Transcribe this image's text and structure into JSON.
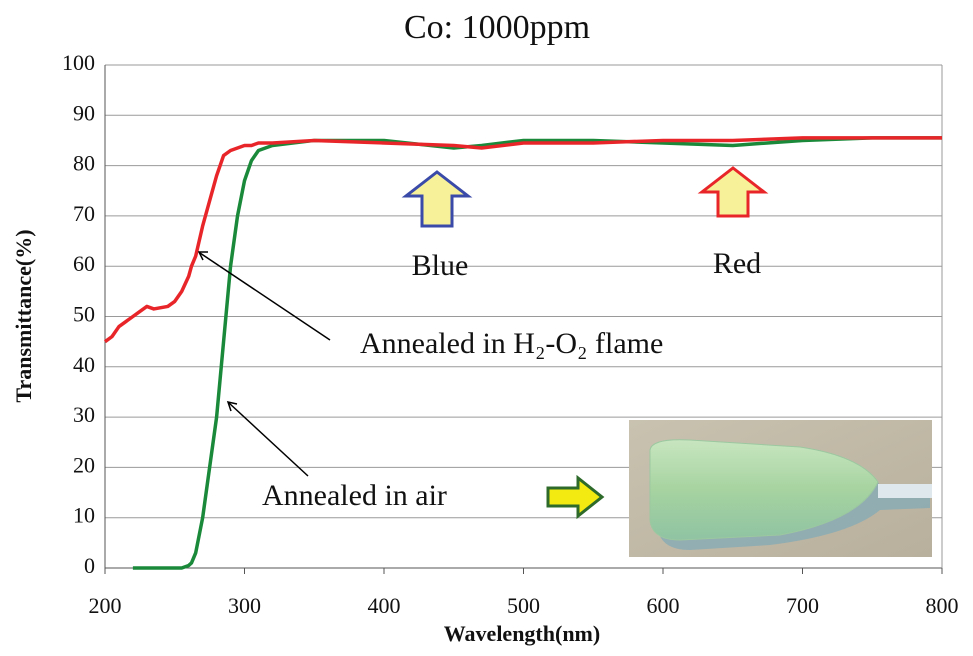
{
  "chart_data": {
    "type": "line",
    "title": "Co: 1000ppm",
    "x_label": "Wavelength(nm)",
    "y_label": "Transmittance(%)",
    "x": [
      200,
      205,
      210,
      220,
      230,
      235,
      245,
      250,
      255,
      260,
      262,
      265,
      270,
      275,
      280,
      285,
      290,
      295,
      300,
      305,
      310,
      320,
      350,
      400,
      450,
      470,
      500,
      550,
      600,
      650,
      700,
      750,
      800
    ],
    "series": [
      {
        "name": "Annealed in H₂-O₂ flame",
        "color": "#e8262a",
        "values": [
          45,
          46,
          48,
          50,
          52,
          51.5,
          52,
          53,
          55,
          58,
          60,
          62,
          68,
          73,
          78,
          82,
          83,
          83.5,
          84,
          84,
          84.5,
          84.5,
          85,
          84.5,
          84,
          83.5,
          84.5,
          84.5,
          85,
          85,
          85.5,
          85.5,
          85.5
        ]
      },
      {
        "name": "Annealed in air",
        "color": "#1a8a3a",
        "values": [
          null,
          null,
          null,
          0,
          0,
          0,
          0,
          0,
          0,
          0.5,
          1,
          3,
          10,
          20,
          30,
          45,
          60,
          70,
          77,
          81,
          83,
          84,
          85,
          85,
          83.5,
          84,
          85,
          85,
          84.5,
          84,
          85,
          85.5,
          85.5
        ]
      }
    ],
    "annotations": [
      "Blue",
      "Red"
    ],
    "xlim": [
      200,
      800
    ],
    "xticks": [
      200,
      300,
      400,
      500,
      600,
      700,
      800
    ],
    "ylim": [
      0,
      100
    ],
    "yticks": [
      0,
      10,
      20,
      30,
      40,
      50,
      60,
      70,
      80,
      90,
      100
    ],
    "grid": true
  }
}
